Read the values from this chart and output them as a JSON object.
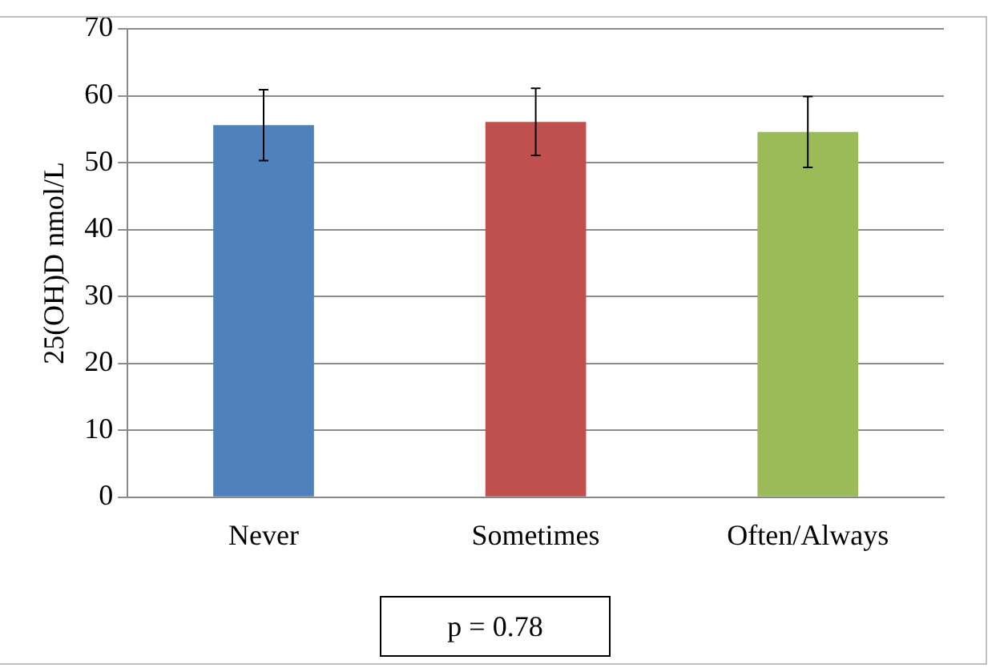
{
  "chart_data": {
    "type": "bar",
    "ylabel": "25(OH)D nmol/L",
    "categories": [
      "Never",
      "Sometimes",
      "Often/Always"
    ],
    "values": [
      55.6,
      56.1,
      54.6
    ],
    "colors": [
      "#4f81bd",
      "#c0504d",
      "#9bbb59"
    ],
    "errors": [
      5.3,
      5.0,
      5.3
    ],
    "ylim": [
      0,
      70
    ],
    "yticks": [
      0,
      10,
      20,
      30,
      40,
      50,
      60,
      70
    ],
    "grid": "y",
    "annotations": [
      "p = 0.78"
    ]
  }
}
